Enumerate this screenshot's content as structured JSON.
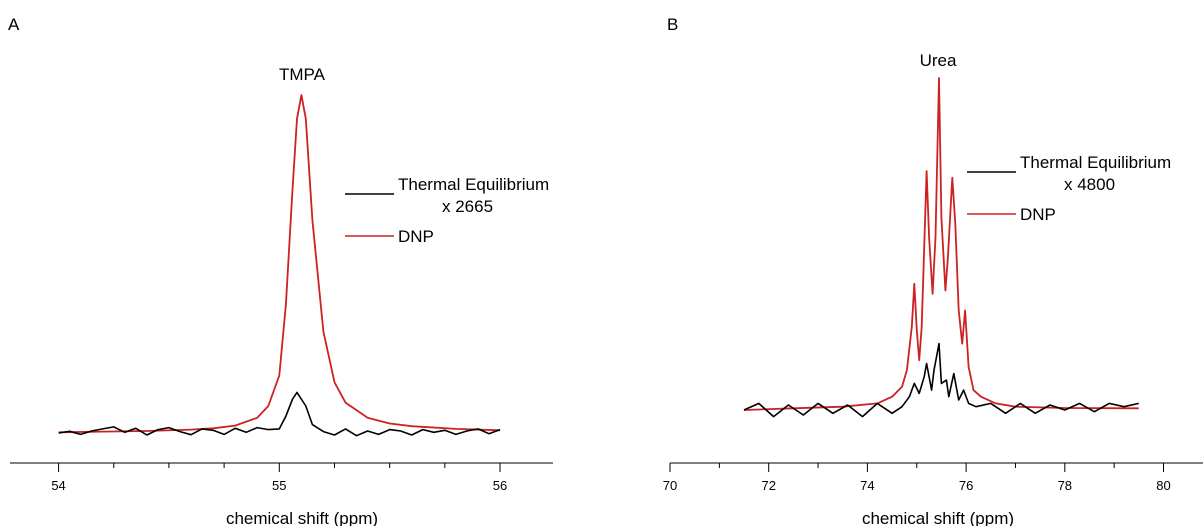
{
  "panels": [
    {
      "letter": "A",
      "peak_label": "TMPA",
      "xlabel": "chemical shift (ppm)",
      "legend_items": [
        {
          "lines": [
            "Thermal Equilibrium",
            "x 2665"
          ],
          "color": "#000000"
        },
        {
          "lines": [
            "DNP"
          ],
          "color": "#cc2222"
        }
      ]
    },
    {
      "letter": "B",
      "peak_label": "Urea",
      "xlabel": "chemical shift (ppm)",
      "legend_items": [
        {
          "lines": [
            "Thermal Equilibrium",
            "x 4800"
          ],
          "color": "#000000"
        },
        {
          "lines": [
            "DNP"
          ],
          "color": "#cc2222"
        }
      ]
    }
  ],
  "chart_data": [
    {
      "type": "line",
      "panel": "A",
      "annotations": [
        "TMPA"
      ],
      "xlabel": "chemical shift (ppm)",
      "ylabel": "",
      "xlim": [
        53.78,
        56.24
      ],
      "xticks": [
        54,
        55,
        56
      ],
      "ylim": [
        0,
        1.07
      ],
      "series": [
        {
          "name": "Thermal Equilibrium x 2665",
          "color": "#000000",
          "x": [
            54.0,
            54.05,
            54.1,
            54.15,
            54.2,
            54.25,
            54.3,
            54.35,
            54.4,
            54.45,
            54.5,
            54.55,
            54.6,
            54.65,
            54.7,
            54.75,
            54.8,
            54.85,
            54.9,
            54.95,
            55.0,
            55.03,
            55.06,
            55.08,
            55.12,
            55.15,
            55.2,
            55.25,
            55.3,
            55.35,
            55.4,
            55.45,
            55.5,
            55.55,
            55.6,
            55.65,
            55.7,
            55.75,
            55.8,
            55.85,
            55.9,
            55.95,
            56.0
          ],
          "values": [
            0.0,
            0.005,
            -0.004,
            0.006,
            0.012,
            0.018,
            0.002,
            0.014,
            -0.006,
            0.01,
            0.016,
            0.004,
            -0.005,
            0.012,
            0.008,
            -0.004,
            0.014,
            0.002,
            0.016,
            0.01,
            0.012,
            0.05,
            0.1,
            0.12,
            0.08,
            0.025,
            0.004,
            -0.006,
            0.012,
            -0.008,
            0.006,
            -0.004,
            0.01,
            0.006,
            -0.006,
            0.01,
            0.002,
            0.008,
            -0.004,
            0.006,
            0.012,
            -0.002,
            0.01
          ]
        },
        {
          "name": "DNP",
          "color": "#cc2222",
          "x": [
            54.0,
            54.2,
            54.4,
            54.6,
            54.7,
            54.8,
            54.9,
            54.95,
            55.0,
            55.03,
            55.06,
            55.08,
            55.1,
            55.12,
            55.15,
            55.2,
            55.25,
            55.3,
            55.4,
            55.5,
            55.6,
            55.8,
            56.0
          ],
          "values": [
            0.002,
            0.004,
            0.006,
            0.01,
            0.014,
            0.022,
            0.045,
            0.08,
            0.17,
            0.38,
            0.72,
            0.93,
            1.0,
            0.93,
            0.63,
            0.3,
            0.15,
            0.09,
            0.045,
            0.028,
            0.02,
            0.012,
            0.008
          ]
        }
      ]
    },
    {
      "type": "line",
      "panel": "B",
      "annotations": [
        "Urea"
      ],
      "xlabel": "chemical shift (ppm)",
      "ylabel": "",
      "xlim": [
        70,
        80.8
      ],
      "xticks": [
        70,
        72,
        74,
        76,
        78,
        80
      ],
      "ylim": [
        0,
        1.07
      ],
      "series": [
        {
          "name": "Thermal Equilibrium x 4800",
          "color": "#000000",
          "x": [
            71.5,
            71.8,
            72.1,
            72.4,
            72.7,
            73.0,
            73.3,
            73.6,
            73.9,
            74.2,
            74.5,
            74.7,
            74.85,
            74.95,
            75.05,
            75.15,
            75.2,
            75.3,
            75.35,
            75.45,
            75.5,
            75.6,
            75.65,
            75.75,
            75.85,
            75.95,
            76.05,
            76.2,
            76.5,
            76.8,
            77.1,
            77.4,
            77.7,
            78.0,
            78.3,
            78.6,
            78.9,
            79.2,
            79.5
          ],
          "values": [
            0.0,
            0.02,
            -0.02,
            0.015,
            -0.015,
            0.02,
            -0.01,
            0.015,
            -0.02,
            0.02,
            -0.01,
            0.01,
            0.04,
            0.08,
            0.05,
            0.1,
            0.14,
            0.06,
            0.12,
            0.2,
            0.08,
            0.09,
            0.04,
            0.11,
            0.03,
            0.06,
            0.02,
            0.01,
            0.02,
            -0.01,
            0.02,
            -0.01,
            0.015,
            0.0,
            0.02,
            -0.005,
            0.02,
            0.01,
            0.02
          ]
        },
        {
          "name": "DNP",
          "color": "#cc2222",
          "x": [
            71.5,
            72.5,
            73.5,
            74.2,
            74.5,
            74.7,
            74.8,
            74.9,
            74.95,
            75.0,
            75.05,
            75.1,
            75.2,
            75.25,
            75.32,
            75.38,
            75.45,
            75.5,
            75.58,
            75.63,
            75.72,
            75.78,
            75.85,
            75.92,
            75.98,
            76.05,
            76.15,
            76.3,
            76.6,
            77.0,
            78.0,
            79.5
          ],
          "values": [
            0.0,
            0.005,
            0.01,
            0.02,
            0.04,
            0.07,
            0.12,
            0.25,
            0.38,
            0.24,
            0.15,
            0.25,
            0.72,
            0.52,
            0.35,
            0.52,
            1.0,
            0.58,
            0.36,
            0.46,
            0.7,
            0.56,
            0.3,
            0.2,
            0.3,
            0.13,
            0.06,
            0.04,
            0.02,
            0.01,
            0.006,
            0.005
          ]
        }
      ]
    }
  ]
}
